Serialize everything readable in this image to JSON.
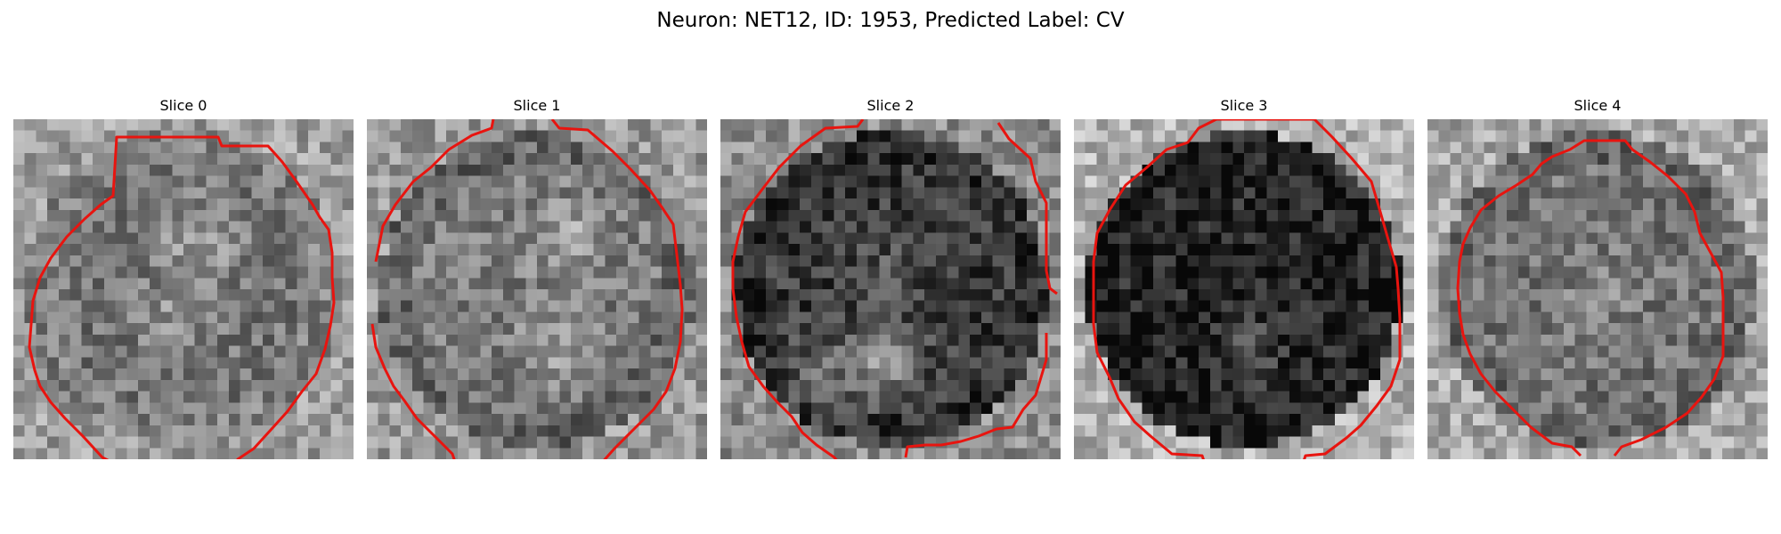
{
  "figure": {
    "title": "Neuron: NET12, ID: 1953, Predicted Label: CV"
  },
  "colors": {
    "contour": "#e8140f",
    "colormap": "grayscale"
  },
  "slices": [
    {
      "title": "Slice 0"
    },
    {
      "title": "Slice 1"
    },
    {
      "title": "Slice 2"
    },
    {
      "title": "Slice 3"
    },
    {
      "title": "Slice 4"
    }
  ]
}
